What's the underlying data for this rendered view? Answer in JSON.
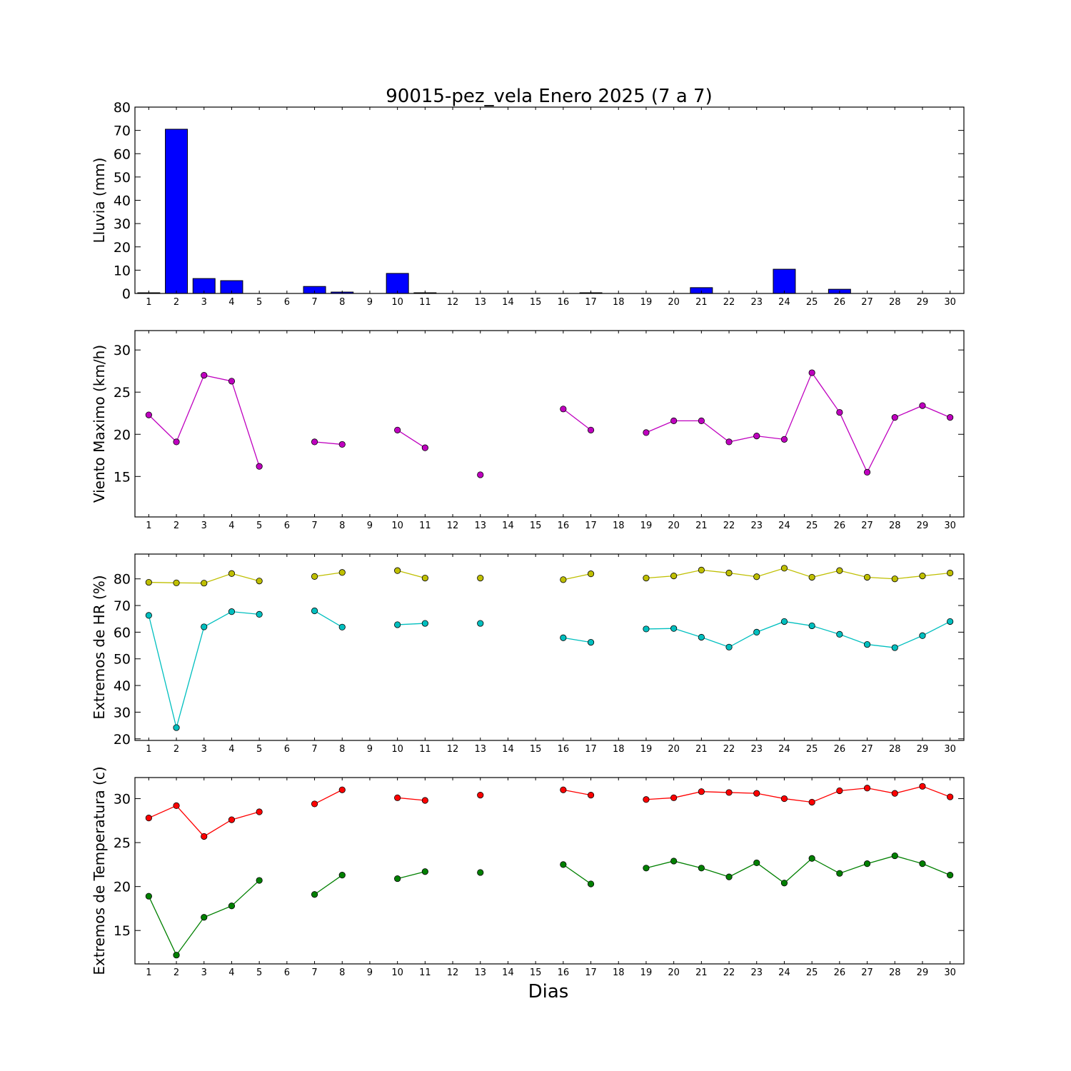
{
  "title": "90015-pez_vela Enero 2025  (7 a 7)",
  "xlabel": "Dias",
  "chart_data": [
    {
      "type": "bar",
      "ylabel": "Lluvia (mm)",
      "ylim": [
        0,
        80
      ],
      "yticks": [
        0,
        10,
        20,
        30,
        40,
        50,
        60,
        70,
        80
      ],
      "x": [
        1,
        2,
        3,
        4,
        5,
        6,
        7,
        8,
        9,
        10,
        11,
        12,
        13,
        14,
        15,
        16,
        17,
        18,
        19,
        20,
        21,
        22,
        23,
        24,
        25,
        26,
        27,
        28,
        29,
        30
      ],
      "xlim": [
        0.5,
        30.5
      ],
      "grid": false,
      "series": [
        {
          "color": "#0000ff",
          "values": [
            0.3,
            70.5,
            6.4,
            5.5,
            0,
            0,
            3.0,
            0.6,
            0,
            8.6,
            0.3,
            0,
            0,
            0,
            0,
            0,
            0.3,
            0,
            0,
            0,
            2.5,
            0,
            0,
            10.4,
            0,
            1.8,
            0,
            0,
            0,
            0
          ]
        }
      ]
    },
    {
      "type": "line",
      "ylabel": "Viento Maximo (km/h)",
      "ylim": [
        10.2,
        32.3
      ],
      "yticks": [
        15,
        20,
        25,
        30
      ],
      "x": [
        1,
        2,
        3,
        4,
        5,
        6,
        7,
        8,
        9,
        10,
        11,
        12,
        13,
        14,
        15,
        16,
        17,
        18,
        19,
        20,
        21,
        22,
        23,
        24,
        25,
        26,
        27,
        28,
        29,
        30
      ],
      "xlim": [
        0.5,
        30.5
      ],
      "grid": false,
      "series": [
        {
          "color": "#bf00bf",
          "values": [
            22.3,
            19.1,
            27.0,
            26.3,
            16.2,
            null,
            19.1,
            18.8,
            null,
            20.5,
            18.4,
            null,
            15.2,
            null,
            null,
            23.0,
            20.5,
            null,
            20.2,
            21.6,
            21.6,
            19.1,
            19.8,
            19.4,
            27.3,
            22.6,
            15.5,
            22.0,
            23.4,
            22.0
          ]
        }
      ]
    },
    {
      "type": "line",
      "ylabel": "Extremos de HR (%)",
      "ylim": [
        19.4,
        89.3
      ],
      "yticks": [
        20,
        30,
        40,
        50,
        60,
        70,
        80
      ],
      "x": [
        1,
        2,
        3,
        4,
        5,
        6,
        7,
        8,
        9,
        10,
        11,
        12,
        13,
        14,
        15,
        16,
        17,
        18,
        19,
        20,
        21,
        22,
        23,
        24,
        25,
        26,
        27,
        28,
        29,
        30
      ],
      "xlim": [
        0.5,
        30.5
      ],
      "grid": false,
      "series": [
        {
          "color": "#bfbf00",
          "values": [
            78.7,
            78.5,
            78.4,
            82.0,
            79.2,
            null,
            80.9,
            82.4,
            null,
            83.1,
            80.3,
            null,
            80.3,
            null,
            null,
            79.7,
            81.9,
            null,
            80.3,
            81.1,
            83.3,
            82.2,
            80.8,
            84.0,
            80.6,
            83.1,
            80.6,
            80.0,
            81.1,
            82.2
          ]
        },
        {
          "color": "#00bfbf",
          "values": [
            66.3,
            24.2,
            62.0,
            67.7,
            66.7,
            null,
            68.0,
            61.9,
            null,
            62.8,
            63.3,
            null,
            63.3,
            null,
            null,
            57.9,
            56.2,
            null,
            61.2,
            61.4,
            58.1,
            54.4,
            60.0,
            64.0,
            62.4,
            59.2,
            55.4,
            54.2,
            58.7,
            64.0
          ]
        }
      ]
    },
    {
      "type": "line",
      "ylabel": "Extremos de Temperatura (c)",
      "ylim": [
        11.2,
        32.4
      ],
      "yticks": [
        15,
        20,
        25,
        30
      ],
      "x": [
        1,
        2,
        3,
        4,
        5,
        6,
        7,
        8,
        9,
        10,
        11,
        12,
        13,
        14,
        15,
        16,
        17,
        18,
        19,
        20,
        21,
        22,
        23,
        24,
        25,
        26,
        27,
        28,
        29,
        30
      ],
      "xlim": [
        0.5,
        30.5
      ],
      "grid": false,
      "series": [
        {
          "color": "#ff0000",
          "values": [
            27.8,
            29.2,
            25.7,
            27.6,
            28.5,
            null,
            29.4,
            31.0,
            null,
            30.1,
            29.8,
            null,
            30.4,
            null,
            null,
            31.0,
            30.4,
            null,
            29.9,
            30.1,
            30.8,
            30.7,
            30.6,
            30.0,
            29.6,
            30.9,
            31.2,
            30.6,
            31.4,
            30.2
          ]
        },
        {
          "color": "#008000",
          "values": [
            18.9,
            12.2,
            16.5,
            17.8,
            20.7,
            null,
            19.1,
            21.3,
            null,
            20.9,
            21.7,
            null,
            21.6,
            null,
            null,
            22.5,
            20.3,
            null,
            22.1,
            22.9,
            22.1,
            21.1,
            22.7,
            20.4,
            23.2,
            21.5,
            22.6,
            23.5,
            22.6,
            21.3
          ]
        }
      ]
    }
  ]
}
